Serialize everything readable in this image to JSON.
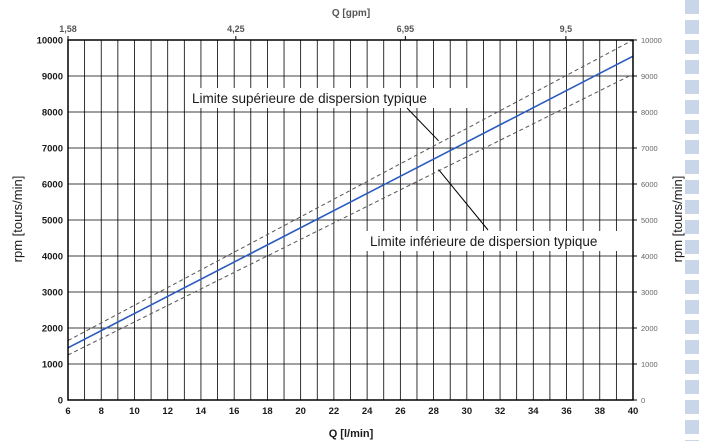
{
  "chart_data": {
    "type": "line",
    "xlabel": "Q [l/min]",
    "x2label": "Q [gpm]",
    "ylabel": "rpm [tours/min]",
    "y2label": "rpm [tours/min]",
    "xlim": [
      6,
      40
    ],
    "ylim": [
      0,
      10000
    ],
    "x_ticks": [
      "6",
      "8",
      "10",
      "12",
      "14",
      "16",
      "18",
      "20",
      "22",
      "24",
      "26",
      "28",
      "30",
      "32",
      "34",
      "36",
      "38",
      "40"
    ],
    "y_ticks": [
      "0",
      "1000",
      "2000",
      "3000",
      "4000",
      "5000",
      "6000",
      "7000",
      "8000",
      "9000",
      "10000"
    ],
    "x2_ticks": [
      {
        "label": "1,58",
        "q": 6
      },
      {
        "label": "4,25",
        "q": 16.1
      },
      {
        "label": "6,95",
        "q": 26.3
      },
      {
        "label": "9,5",
        "q": 35.96
      }
    ],
    "grid": true,
    "series": [
      {
        "key": "nominal",
        "color": "#2a5bc0",
        "style": "solid",
        "x": [
          6,
          40
        ],
        "y": [
          1450,
          9550
        ]
      },
      {
        "key": "upper",
        "color": "#555555",
        "style": "dashed",
        "x": [
          6,
          40
        ],
        "y": [
          1650,
          10000
        ]
      },
      {
        "key": "lower",
        "color": "#555555",
        "style": "dashed",
        "x": [
          6,
          40
        ],
        "y": [
          1250,
          9050
        ]
      }
    ],
    "annotations": [
      {
        "text": "Limite supérieure de dispersion typique",
        "point_x": 28.3,
        "point_y": 7200
      },
      {
        "text": "Limite inférieure de dispersion typique",
        "point_x": 28.3,
        "point_y": 6400
      }
    ]
  }
}
